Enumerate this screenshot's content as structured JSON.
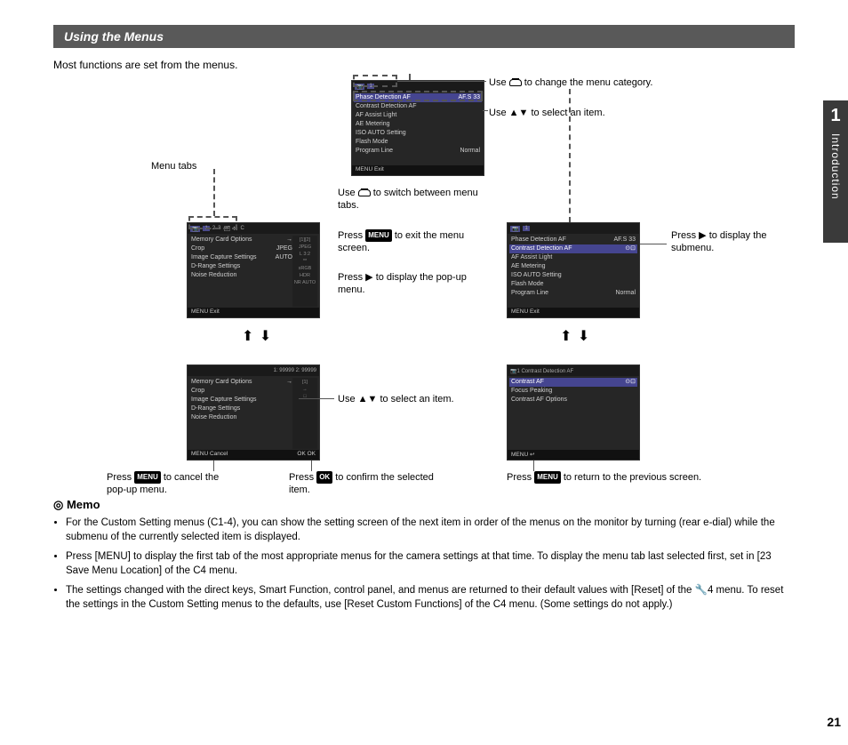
{
  "page": {
    "section_title": "Using the Menus",
    "intro": "Most functions are set from the menus.",
    "chapter_number": "1",
    "chapter_title": "Introduction",
    "page_number": "21"
  },
  "colors": {
    "header_bg": "#595959",
    "side_bg": "#3a3a3a",
    "screen_bg": "#262626",
    "highlight": "#454590"
  },
  "labels": {
    "menu_tabs": "Menu tabs",
    "use_change_category": "to change the menu category.",
    "use_select_item_top": "to select an item.",
    "use_switch_tabs_1": "Use",
    "use_switch_tabs_2": "to switch between menu tabs.",
    "press_menu_exit_1": "Press",
    "press_menu_exit_2": "to exit the menu screen.",
    "press_right_popup_1": "Press ▶ to display the pop-up menu.",
    "press_right_submenu": "Press ▶ to display the submenu.",
    "use_select_item_mid": "Use ▲▼ to select an item.",
    "press_menu_cancel_1": "Press",
    "press_menu_cancel_2": "to cancel the pop-up menu.",
    "press_ok_confirm_1": "Press",
    "press_ok_confirm_2": "to confirm the selected item.",
    "press_menu_return_1": "Press",
    "press_menu_return_2": "to return to the previous screen.",
    "use_prefix": "Use",
    "menu_btn": "MENU",
    "ok_btn": "OK"
  },
  "screens": {
    "s1": {
      "tabs": [
        "📷",
        "1",
        "2",
        "3",
        "🗂",
        "⚒",
        "C"
      ],
      "items": [
        "Memory Card Options",
        "Crop",
        "Image Capture Settings",
        "D-Range Settings",
        "Noise Reduction"
      ],
      "right": [
        "→",
        "JPEG",
        "AUTO",
        "",
        ""
      ],
      "footL": "MENU Exit",
      "footR": "",
      "side": [
        "[1][2]",
        "JPEG",
        "L 3:2",
        "**",
        "sRGB",
        "HDR",
        "NR AUTO"
      ]
    },
    "s2": {
      "tabs": [
        "📷",
        "1"
      ],
      "items": [
        "Phase Detection AF",
        "Contrast Detection AF",
        "AF Assist Light",
        "AE Metering",
        "ISO AUTO Setting",
        "Flash Mode",
        "Program Line"
      ],
      "right": [
        "AF.S 33",
        "",
        "",
        "",
        "",
        "",
        "Normal"
      ],
      "selected": 0,
      "footL": "MENU Exit",
      "footR": ""
    },
    "s3": {
      "tabs": [
        "📷",
        "1"
      ],
      "items": [
        "Phase Detection AF",
        "Contrast Detection AF",
        "AF Assist Light",
        "AE Metering",
        "ISO AUTO Setting",
        "Flash Mode",
        "Program Line"
      ],
      "right": [
        "AF.S 33",
        "⊙⊡",
        "",
        "",
        "",
        "",
        "Normal"
      ],
      "selected": 1,
      "footL": "MENU Exit",
      "footR": ""
    },
    "s4": {
      "topline": "1: 99999  2: 99999",
      "items": [
        "Memory Card Options",
        "Crop",
        "Image Capture Settings",
        "D-Range Settings",
        "Noise Reduction"
      ],
      "right": [
        "→",
        "",
        "",
        "",
        ""
      ],
      "footL": "MENU Cancel",
      "footR": "OK OK",
      "side": [
        "[1]",
        "→",
        "□",
        "",
        ""
      ]
    },
    "s5": {
      "title": "📷1 Contrast Detection AF",
      "items": [
        "Contrast AF",
        "Focus Peaking",
        "Contrast AF Options"
      ],
      "right": [
        "⊙⊡",
        "",
        ""
      ],
      "selected": 0,
      "footL": "MENU ↩",
      "footR": ""
    }
  },
  "memo": {
    "heading": "Memo",
    "items": [
      "For the Custom Setting menus (C1-4), you can show the setting screen of the next item in order of the menus on the monitor by turning (rear e-dial) while the submenu of the currently selected item is displayed.",
      "Press [MENU] to display the first tab of the most appropriate menus for the camera settings at that time. To display the menu tab last selected first, set in [23 Save Menu Location] of the C4 menu.",
      "The settings changed with the direct keys, Smart Function, control panel, and menus are returned to their default values with [Reset] of the 🔧4 menu. To reset the settings in the Custom Setting menus to the defaults, use [Reset Custom Functions] of the C4 menu. (Some settings do not apply.)"
    ]
  }
}
